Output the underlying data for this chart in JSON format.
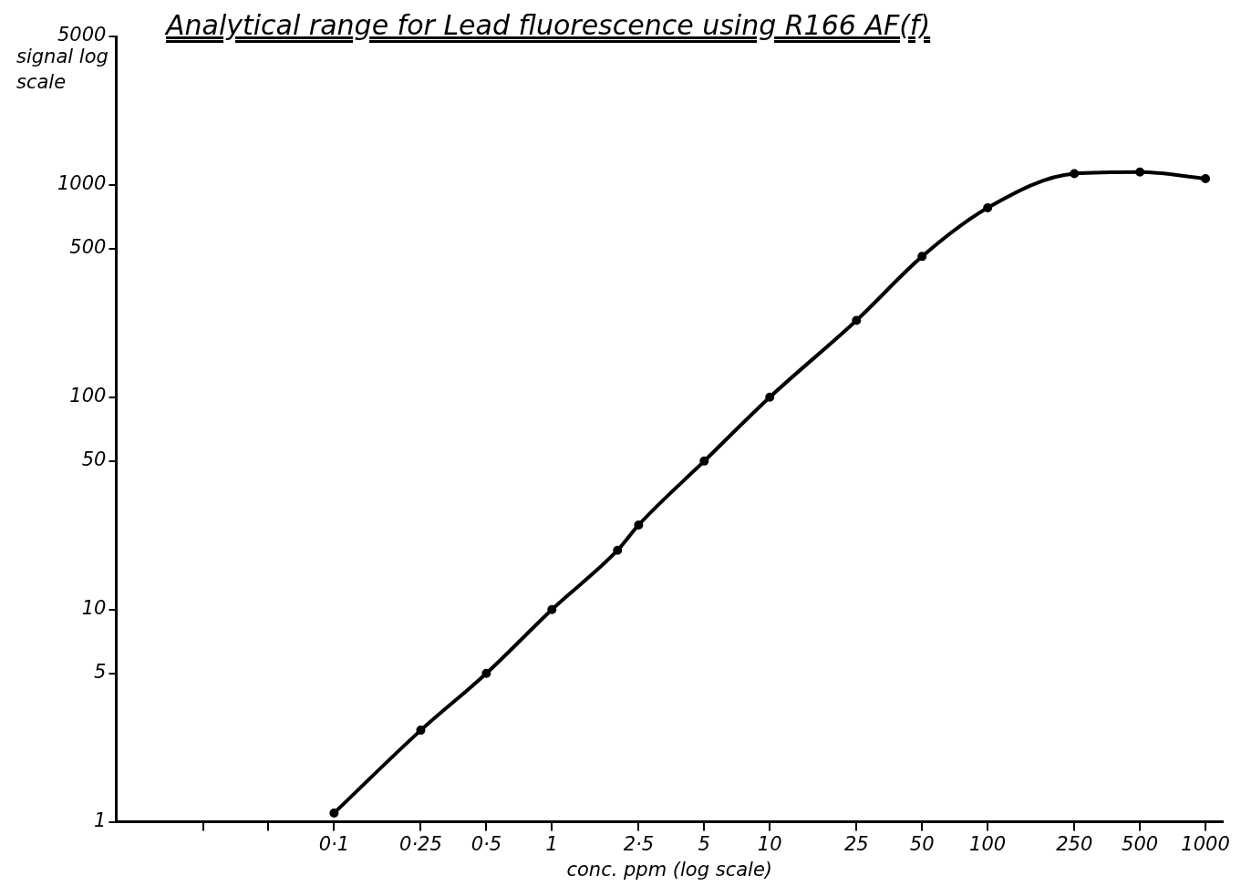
{
  "chart_data": {
    "type": "line",
    "title": "Analytical range for Lead fluorescence using R166 AF(f)",
    "xlabel": "conc. ppm (log scale)",
    "ylabel": "signal log scale",
    "log": "xy",
    "x": [
      0.1,
      0.25,
      0.5,
      1,
      2,
      2.5,
      5,
      10,
      25,
      50,
      100,
      250,
      500,
      1000
    ],
    "series": [
      {
        "color": "#000000",
        "values": [
          1.1,
          2.7,
          5,
          10,
          19,
          25,
          50,
          100,
          230,
          460,
          780,
          1130,
          1150,
          1070
        ]
      }
    ],
    "xlim": [
      0.01,
      1200
    ],
    "xticks": [
      {
        "value": 0.025,
        "label": null
      },
      {
        "value": 0.05,
        "label": null
      },
      {
        "value": 0.1,
        "label": "0·1"
      },
      {
        "value": 0.25,
        "label": "0·25"
      },
      {
        "value": 0.5,
        "label": "0·5"
      },
      1,
      {
        "value": 2.5,
        "label": "2·5"
      },
      5,
      10,
      25,
      50,
      100,
      250,
      500,
      1000
    ],
    "ylim": [
      1,
      5000
    ],
    "yticks": [
      1,
      5,
      10,
      50,
      100,
      500,
      1000,
      5000
    ],
    "grid": false,
    "legend": false,
    "marker": "circle",
    "line_style": "solid"
  }
}
